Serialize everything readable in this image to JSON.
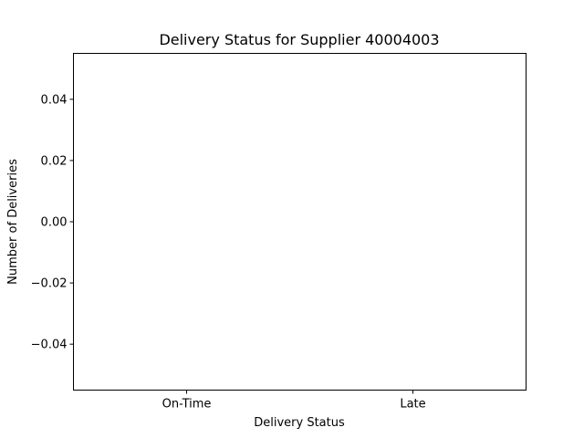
{
  "chart_data": {
    "type": "bar",
    "title": "Delivery Status for Supplier 40004003",
    "xlabel": "Delivery Status",
    "ylabel": "Number of Deliveries",
    "categories": [
      "On-Time",
      "Late"
    ],
    "values": [
      0,
      0
    ],
    "ylim": [
      -0.055,
      0.055
    ],
    "yticks": [
      -0.04,
      -0.02,
      0.0,
      0.02,
      0.04
    ],
    "ytick_labels": [
      "−0.04",
      "−0.02",
      "0.00",
      "0.02",
      "0.04"
    ],
    "grid": false,
    "bar_color": "#1f77b4"
  }
}
